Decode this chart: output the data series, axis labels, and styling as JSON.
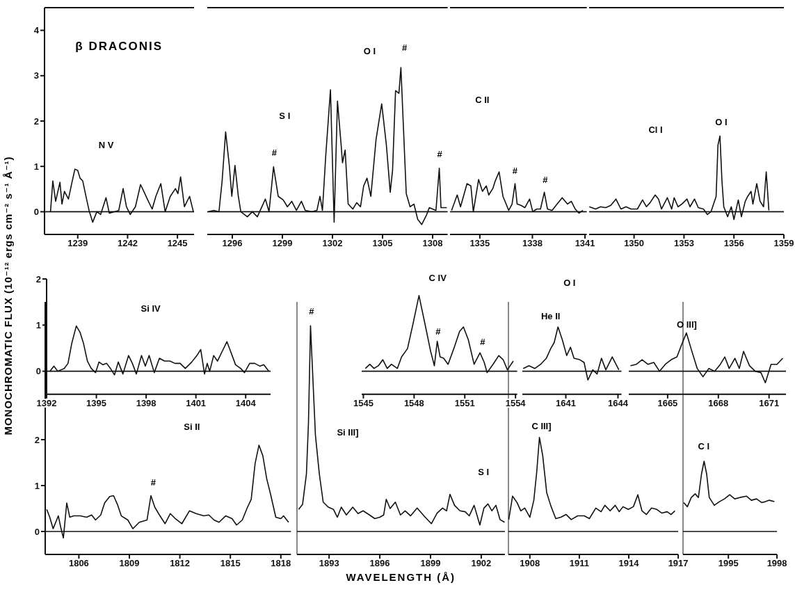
{
  "chart_data": [
    {
      "type": "line",
      "title": "β DRACONIS",
      "ylabel": "MONOCHROMATIC FLUX (10⁻¹² ergs cm⁻² s⁻¹ Å⁻¹)",
      "xlim": [
        1237,
        1246
      ],
      "xticks": [
        1239,
        1242,
        1245
      ],
      "ylim": [
        -0.5,
        4.5
      ],
      "yticks": [
        0,
        1,
        2,
        3,
        4
      ],
      "ref_lines": [
        {
          "axis": "y",
          "value": 0
        }
      ],
      "x": [
        1237.36,
        1237.5,
        1237.67,
        1237.93,
        1238.05,
        1238.2,
        1238.44,
        1238.67,
        1238.83,
        1239.0,
        1239.14,
        1239.3,
        1239.53,
        1239.68,
        1239.9,
        1240.15,
        1240.38,
        1240.7,
        1240.9,
        1241.2,
        1241.47,
        1241.73,
        1241.93,
        1242.16,
        1242.47,
        1242.78,
        1243.0,
        1243.25,
        1243.48,
        1243.7,
        1244.0,
        1244.26,
        1244.57,
        1244.88,
        1245.03,
        1245.19,
        1245.42,
        1245.73,
        1245.96
      ],
      "series": [
        {
          "color": "#111111",
          "values": [
            0,
            0.68,
            0.23,
            0.65,
            0.17,
            0.45,
            0.28,
            0.68,
            0.94,
            0.91,
            0.74,
            0.68,
            0.28,
            0.03,
            -0.23,
            0,
            -0.06,
            0.31,
            -0.03,
            0,
            0.03,
            0.51,
            0.11,
            -0.06,
            0.11,
            0.6,
            0.43,
            0.23,
            0.06,
            0.34,
            0.62,
            0,
            0.34,
            0.51,
            0.4,
            0.77,
            0.11,
            0.34,
            0
          ]
        }
      ],
      "annotations": [
        "N V"
      ]
    },
    {
      "type": "line",
      "tick_labels": "x",
      "xlim": [
        1294.5,
        1308.9
      ],
      "xticks": [
        1296,
        1299,
        1302,
        1305,
        1308
      ],
      "ylim": [
        -0.5,
        4.5
      ],
      "ref_lines": [
        {
          "axis": "y",
          "value": 0
        }
      ],
      "x": [
        1294.58,
        1294.89,
        1295.2,
        1295.39,
        1295.6,
        1295.82,
        1295.97,
        1296.16,
        1296.36,
        1296.51,
        1296.9,
        1297.2,
        1297.5,
        1297.98,
        1298.2,
        1298.47,
        1298.75,
        1299.05,
        1299.3,
        1299.56,
        1299.84,
        1300.14,
        1300.37,
        1300.76,
        1301.07,
        1301.25,
        1301.4,
        1301.6,
        1301.88,
        1302.1,
        1302.3,
        1302.52,
        1302.6,
        1302.76,
        1302.94,
        1303.22,
        1303.45,
        1303.68,
        1303.87,
        1304.07,
        1304.3,
        1304.61,
        1304.95,
        1305.23,
        1305.46,
        1305.6,
        1305.78,
        1305.98,
        1306.1,
        1306.27,
        1306.42,
        1306.65,
        1306.88,
        1307.11,
        1307.35,
        1307.65,
        1307.8,
        1308.2,
        1308.4,
        1308.5,
        1308.85
      ],
      "series": [
        {
          "color": "#111111",
          "values": [
            0,
            0.03,
            0,
            0.68,
            1.76,
            1.02,
            0.34,
            1.02,
            0.34,
            0,
            -0.11,
            0,
            -0.11,
            0.28,
            0,
            0.99,
            0.34,
            0.26,
            0.11,
            0.23,
            0.03,
            0.23,
            0.03,
            0,
            0.03,
            0.34,
            0.03,
            1.25,
            2.69,
            -0.23,
            2.44,
            1.47,
            1.08,
            1.36,
            0.17,
            0.06,
            0.2,
            0.11,
            0.57,
            0.74,
            0.34,
            1.59,
            2.38,
            1.47,
            0.43,
            0.91,
            2.67,
            2.61,
            3.18,
            1.7,
            0.4,
            0.11,
            0.17,
            -0.17,
            -0.28,
            -0.06,
            0.09,
            0.03,
            0.96,
            0.09,
            0.09
          ]
        }
      ],
      "annotations": [
        "S I",
        "#",
        "O I",
        "#",
        "#"
      ]
    },
    {
      "type": "line",
      "tick_labels": "x",
      "xlim": [
        1333.3,
        1341.1
      ],
      "xticks": [
        1335,
        1338,
        1341
      ],
      "ylim": [
        -0.5,
        4.5
      ],
      "ref_lines": [
        {
          "axis": "y",
          "value": 0
        }
      ],
      "x": [
        1333.39,
        1333.71,
        1333.9,
        1334.27,
        1334.49,
        1334.63,
        1334.93,
        1335.15,
        1335.37,
        1335.51,
        1335.74,
        1335.88,
        1336.1,
        1336.32,
        1336.65,
        1336.84,
        1337.01,
        1337.13,
        1337.35,
        1337.57,
        1337.84,
        1338.02,
        1338.24,
        1338.46,
        1338.68,
        1338.86,
        1339.12,
        1339.41,
        1339.7,
        1340.0,
        1340.22,
        1340.44,
        1340.66,
        1340.88
      ],
      "series": [
        {
          "color": "#111111",
          "values": [
            0.03,
            0.37,
            0.11,
            0.62,
            0.57,
            0,
            0.71,
            0.45,
            0.57,
            0.37,
            0.51,
            0.68,
            0.88,
            0.34,
            0.03,
            0.17,
            0.62,
            0.17,
            0.14,
            0.09,
            0.28,
            0,
            0.06,
            0.06,
            0.43,
            0.06,
            0.03,
            0.17,
            0.31,
            0.17,
            0.23,
            0.06,
            -0.03,
            0.03
          ]
        }
      ],
      "annotations": [
        "C II",
        "#",
        "#"
      ]
    },
    {
      "type": "line",
      "tick_labels": "x",
      "xlim": [
        1347.3,
        1359
      ],
      "xticks": [
        1350,
        1353,
        1356,
        1359
      ],
      "ylim": [
        -0.5,
        4.5
      ],
      "ref_lines": [
        {
          "axis": "y",
          "value": 0
        }
      ],
      "x": [
        1347.31,
        1347.69,
        1347.99,
        1348.3,
        1348.6,
        1348.91,
        1349.21,
        1349.52,
        1349.82,
        1350.2,
        1350.51,
        1350.74,
        1350.96,
        1351.27,
        1351.47,
        1351.65,
        1352.0,
        1352.26,
        1352.41,
        1352.64,
        1352.87,
        1353.18,
        1353.36,
        1353.63,
        1353.86,
        1354.17,
        1354.4,
        1354.62,
        1354.93,
        1355.04,
        1355.16,
        1355.28,
        1355.39,
        1355.62,
        1355.84,
        1356.0,
        1356.26,
        1356.45,
        1356.68,
        1356.83,
        1357.03,
        1357.14,
        1357.37,
        1357.57,
        1357.78,
        1357.94,
        1358.1
      ],
      "series": [
        {
          "color": "#111111",
          "values": [
            0.11,
            0.06,
            0.11,
            0.09,
            0.14,
            0.28,
            0.06,
            0.11,
            0.06,
            0.06,
            0.26,
            0.11,
            0.2,
            0.37,
            0.28,
            0.06,
            0.31,
            0.06,
            0.31,
            0.11,
            0.17,
            0.28,
            0.11,
            0.28,
            0.09,
            0.06,
            -0.06,
            0,
            0.34,
            1.47,
            1.67,
            0.68,
            0.11,
            -0.11,
            0.11,
            -0.17,
            0.26,
            -0.11,
            0.23,
            0.34,
            0.45,
            0.17,
            0.62,
            0.23,
            0.11,
            0.88,
            0.03
          ]
        }
      ],
      "annotations": [
        "Cl I",
        "O I"
      ]
    },
    {
      "type": "line",
      "xlim": [
        1392,
        1405.5
      ],
      "xticks": [
        1392,
        1395,
        1398,
        1401,
        1404
      ],
      "ylim": [
        -0.5,
        2
      ],
      "yticks": [
        0,
        1,
        2
      ],
      "ref_lines": [
        {
          "axis": "y",
          "value": 0
        }
      ],
      "x": [
        1392.2,
        1392.44,
        1392.67,
        1393.06,
        1393.29,
        1393.52,
        1393.79,
        1394.02,
        1394.22,
        1394.46,
        1394.69,
        1394.95,
        1395.16,
        1395.39,
        1395.62,
        1395.85,
        1396.09,
        1396.32,
        1396.6,
        1396.94,
        1397.17,
        1397.41,
        1397.72,
        1397.95,
        1398.18,
        1398.49,
        1398.8,
        1399.11,
        1399.43,
        1399.74,
        1400.05,
        1400.36,
        1400.75,
        1401.06,
        1401.29,
        1401.52,
        1401.68,
        1401.83,
        1402.07,
        1402.3,
        1402.53,
        1402.87,
        1403.07,
        1403.39,
        1403.7,
        1403.93,
        1404.24,
        1404.55,
        1404.86,
        1405.09,
        1405.4
      ],
      "series": [
        {
          "color": "#111111",
          "values": [
            0,
            0.11,
            0,
            0.06,
            0.17,
            0.61,
            0.98,
            0.84,
            0.61,
            0.22,
            0.06,
            -0.03,
            0.2,
            0.14,
            0.17,
            0.06,
            -0.08,
            0.2,
            -0.06,
            0.34,
            0.17,
            -0.06,
            0.34,
            0.11,
            0.34,
            -0.03,
            0.28,
            0.22,
            0.22,
            0.17,
            0.17,
            0.06,
            0.2,
            0.34,
            0.47,
            -0.06,
            0.17,
            0,
            0.34,
            0.22,
            0.39,
            0.64,
            0.45,
            0.14,
            0.06,
            -0.03,
            0.17,
            0.17,
            0.11,
            0.14,
            0
          ]
        }
      ],
      "annotations": [
        "Si IV"
      ]
    },
    {
      "type": "line",
      "tick_labels": "x",
      "xlim": [
        1544.9,
        1554.1
      ],
      "xticks": [
        1545,
        1548,
        1551,
        1554
      ],
      "ylim": [
        -0.5,
        2
      ],
      "ref_lines": [
        {
          "axis": "y",
          "value": 0
        }
      ],
      "x": [
        1545.12,
        1545.38,
        1545.63,
        1545.89,
        1546.15,
        1546.41,
        1546.66,
        1547.01,
        1547.26,
        1547.61,
        1547.95,
        1548.29,
        1548.63,
        1548.98,
        1549.2,
        1549.37,
        1549.54,
        1549.75,
        1550.01,
        1550.35,
        1550.69,
        1550.92,
        1551.21,
        1551.55,
        1551.9,
        1552.15,
        1552.32,
        1552.67,
        1553.01,
        1553.27,
        1553.52,
        1553.87
      ],
      "series": [
        {
          "color": "#111111",
          "values": [
            0.06,
            0.15,
            0.06,
            0.12,
            0.25,
            0.06,
            0.15,
            0.06,
            0.31,
            0.49,
            1.05,
            1.64,
            1.05,
            0.43,
            0.12,
            0.65,
            0.31,
            0.28,
            0.15,
            0.49,
            0.86,
            0.96,
            0.68,
            0.15,
            0.4,
            0.19,
            -0.03,
            0.15,
            0.34,
            0.25,
            0.03,
            0.22
          ]
        }
      ],
      "annotations": [
        "C IV",
        "#",
        "#"
      ]
    },
    {
      "type": "line",
      "tick_labels": "x",
      "xlim": [
        1638.5,
        1644.2
      ],
      "xticks": [
        1641,
        1644
      ],
      "ylim": [
        -0.5,
        2
      ],
      "ref_lines": [
        {
          "axis": "y",
          "value": 0
        }
      ],
      "x": [
        1638.55,
        1638.88,
        1639.22,
        1639.55,
        1639.88,
        1640.13,
        1640.33,
        1640.55,
        1640.8,
        1641.05,
        1641.27,
        1641.47,
        1641.8,
        1642.05,
        1642.27,
        1642.55,
        1642.8,
        1643.05,
        1643.3,
        1643.67,
        1644.05
      ],
      "series": [
        {
          "color": "#111111",
          "values": [
            0.06,
            0.12,
            0.06,
            0.15,
            0.28,
            0.49,
            0.62,
            0.96,
            0.68,
            0.34,
            0.52,
            0.28,
            0.25,
            0.19,
            -0.19,
            0.03,
            -0.06,
            0.28,
            0.03,
            0.31,
            0.03
          ]
        }
      ],
      "annotations": [
        "He II",
        "O I"
      ]
    },
    {
      "type": "line",
      "tick_labels": "x",
      "xlim": [
        1662.7,
        1672
      ],
      "xticks": [
        1665,
        1668,
        1671
      ],
      "ylim": [
        -0.5,
        2
      ],
      "ref_lines": [
        {
          "axis": "y",
          "value": 0
        }
      ],
      "x": [
        1662.8,
        1663.15,
        1663.49,
        1663.83,
        1664.18,
        1664.52,
        1664.86,
        1665.21,
        1665.55,
        1665.81,
        1666.11,
        1666.41,
        1666.75,
        1667.09,
        1667.44,
        1667.78,
        1668.12,
        1668.38,
        1668.64,
        1668.98,
        1669.24,
        1669.49,
        1669.84,
        1670.18,
        1670.52,
        1670.78,
        1671.12,
        1671.47,
        1671.81
      ],
      "series": [
        {
          "color": "#111111",
          "values": [
            0.12,
            0.15,
            0.25,
            0.15,
            0.19,
            0,
            0.15,
            0.25,
            0.31,
            0.56,
            0.83,
            0.46,
            0.06,
            -0.12,
            0.06,
            0,
            0.15,
            0.31,
            0.06,
            0.28,
            0.06,
            0.43,
            0.12,
            0,
            -0.03,
            -0.25,
            0.15,
            0.15,
            0.28
          ]
        }
      ],
      "annotations": [
        "O III]"
      ]
    },
    {
      "type": "line",
      "xlim": [
        1804,
        1818.6
      ],
      "xticks": [
        1806,
        1809,
        1812,
        1815,
        1818
      ],
      "ylim": [
        -0.5,
        5
      ],
      "yticks": [
        0,
        1,
        2
      ],
      "ref_lines": [
        {
          "axis": "y",
          "value": 0
        }
      ],
      "x": [
        1804.09,
        1804.27,
        1804.47,
        1804.78,
        1804.93,
        1805.08,
        1805.28,
        1805.46,
        1805.69,
        1806.08,
        1806.46,
        1806.76,
        1806.99,
        1807.3,
        1807.53,
        1807.83,
        1808.06,
        1808.29,
        1808.52,
        1808.91,
        1809.21,
        1809.59,
        1810.05,
        1810.28,
        1810.51,
        1810.82,
        1811.12,
        1811.43,
        1811.73,
        1812.12,
        1812.57,
        1812.96,
        1813.42,
        1813.72,
        1814.03,
        1814.33,
        1814.72,
        1815.1,
        1815.37,
        1815.71,
        1816.02,
        1816.24,
        1816.47,
        1816.7,
        1816.93,
        1817.16,
        1817.39,
        1817.7,
        1818.0,
        1818.16,
        1818.46
      ],
      "series": [
        {
          "color": "#111111",
          "values": [
            0.48,
            0.31,
            0.06,
            0.34,
            0.08,
            -0.14,
            0.62,
            0.31,
            0.34,
            0.34,
            0.31,
            0.36,
            0.25,
            0.36,
            0.62,
            0.76,
            0.78,
            0.59,
            0.34,
            0.25,
            0.06,
            0.2,
            0.25,
            0.78,
            0.53,
            0.34,
            0.17,
            0.39,
            0.28,
            0.17,
            0.45,
            0.39,
            0.34,
            0.36,
            0.25,
            0.2,
            0.34,
            0.28,
            0.14,
            0.25,
            0.53,
            0.7,
            1.48,
            1.88,
            1.65,
            1.15,
            0.81,
            0.31,
            0.28,
            0.34,
            0.2
          ]
        }
      ],
      "annotations": [
        "Si II",
        "#"
      ]
    },
    {
      "type": "line",
      "tick_labels": "x",
      "xlabel": "WAVELENGTH (Å)",
      "xlim": [
        1891.1,
        1903.4
      ],
      "xticks": [
        1893,
        1896,
        1899,
        1902
      ],
      "ylim": [
        -0.5,
        5
      ],
      "ref_lines": [
        {
          "axis": "y",
          "value": 0
        }
      ],
      "x": [
        1891.2,
        1891.43,
        1891.66,
        1891.78,
        1891.9,
        1892.19,
        1892.42,
        1892.65,
        1892.95,
        1893.26,
        1893.49,
        1893.72,
        1894.02,
        1894.4,
        1894.71,
        1895.01,
        1895.39,
        1895.7,
        1896.0,
        1896.23,
        1896.38,
        1896.61,
        1896.92,
        1897.22,
        1897.5,
        1897.82,
        1898.21,
        1898.61,
        1899.05,
        1899.39,
        1899.71,
        1899.95,
        1900.15,
        1900.42,
        1900.74,
        1901.05,
        1901.29,
        1901.58,
        1901.92,
        1902.16,
        1902.4,
        1902.63,
        1902.87,
        1903.11,
        1903.38
      ],
      "series": [
        {
          "color": "#111111",
          "values": [
            0.48,
            0.59,
            1.26,
            2.38,
            4.48,
            2.1,
            1.26,
            0.64,
            0.53,
            0.48,
            0.31,
            0.53,
            0.36,
            0.53,
            0.39,
            0.45,
            0.36,
            0.28,
            0.31,
            0.36,
            0.7,
            0.5,
            0.64,
            0.36,
            0.45,
            0.34,
            0.51,
            0.34,
            0.17,
            0.4,
            0.51,
            0.45,
            0.81,
            0.57,
            0.45,
            0.43,
            0.34,
            0.57,
            0.14,
            0.51,
            0.6,
            0.45,
            0.57,
            0.26,
            0.2
          ]
        }
      ],
      "annotations": [
        "#",
        "Si III]",
        "S I"
      ]
    },
    {
      "type": "line",
      "tick_labels": "x",
      "xlim": [
        1906.7,
        1917
      ],
      "xticks": [
        1908,
        1911,
        1914,
        1917
      ],
      "ylim": [
        -0.5,
        5
      ],
      "ref_lines": [
        {
          "axis": "y",
          "value": 0
        }
      ],
      "x": [
        1906.72,
        1906.95,
        1907.22,
        1907.45,
        1907.69,
        1908.0,
        1908.24,
        1908.42,
        1908.58,
        1908.78,
        1909.02,
        1909.26,
        1909.57,
        1909.88,
        1910.2,
        1910.51,
        1910.9,
        1911.3,
        1911.61,
        1912.0,
        1912.32,
        1912.55,
        1912.87,
        1913.18,
        1913.42,
        1913.65,
        1913.97,
        1914.28,
        1914.55,
        1914.8,
        1915.07,
        1915.38,
        1915.7,
        1916.01,
        1916.33,
        1916.56,
        1916.8
      ],
      "series": [
        {
          "color": "#111111",
          "values": [
            0.26,
            0.77,
            0.63,
            0.45,
            0.51,
            0.31,
            0.68,
            1.31,
            2.05,
            1.65,
            0.85,
            0.57,
            0.28,
            0.31,
            0.37,
            0.26,
            0.34,
            0.34,
            0.28,
            0.51,
            0.43,
            0.57,
            0.45,
            0.57,
            0.43,
            0.54,
            0.48,
            0.54,
            0.8,
            0.45,
            0.37,
            0.51,
            0.48,
            0.4,
            0.43,
            0.37,
            0.45
          ]
        }
      ],
      "annotations": [
        "C III]"
      ]
    },
    {
      "type": "line",
      "tick_labels": "x",
      "xlim": [
        1992.2,
        1998
      ],
      "xticks": [
        1995,
        1998
      ],
      "ylim": [
        -0.5,
        5
      ],
      "ref_lines": [
        {
          "axis": "y",
          "value": 0
        }
      ],
      "x": [
        1992.24,
        1992.47,
        1992.71,
        1992.95,
        1993.15,
        1993.34,
        1993.5,
        1993.66,
        1993.82,
        1994.13,
        1994.45,
        1994.76,
        1995.08,
        1995.39,
        1995.71,
        1996.11,
        1996.42,
        1996.74,
        1997.05,
        1997.29,
        1997.52,
        1997.84
      ],
      "series": [
        {
          "color": "#111111",
          "values": [
            0.63,
            0.54,
            0.74,
            0.82,
            0.74,
            1.25,
            1.53,
            1.25,
            0.74,
            0.57,
            0.65,
            0.71,
            0.8,
            0.71,
            0.74,
            0.77,
            0.68,
            0.71,
            0.63,
            0.65,
            0.68,
            0.65
          ]
        }
      ],
      "annotations": [
        "C I"
      ]
    }
  ]
}
